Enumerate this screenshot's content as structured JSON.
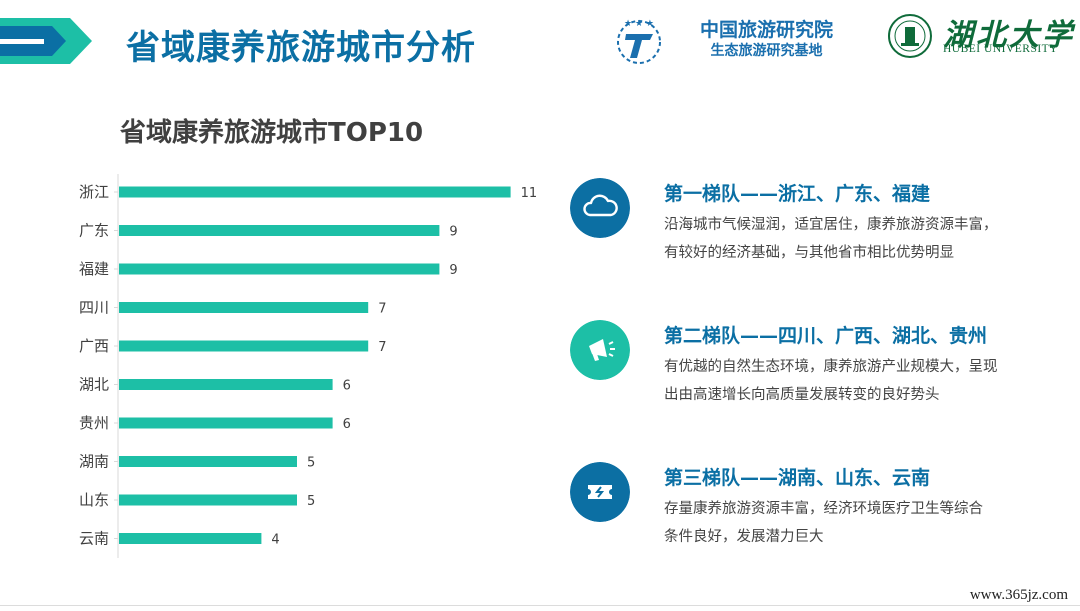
{
  "header": {
    "title": "省域康养旅游城市分析",
    "institute_line1": "中国旅游研究院",
    "institute_line2": "生态旅游研究基地",
    "university_cn": "湖北大学",
    "university_en": "HUBEI UNIVERSITY"
  },
  "chart_data": {
    "type": "bar",
    "orientation": "horizontal",
    "title": "省域康养旅游城市TOP10",
    "categories": [
      "浙江",
      "广东",
      "福建",
      "四川",
      "广西",
      "湖北",
      "贵州",
      "湖南",
      "山东",
      "云南"
    ],
    "values": [
      11,
      9,
      9,
      7,
      7,
      6,
      6,
      5,
      5,
      4
    ],
    "xlim": [
      0,
      11
    ],
    "data_labels": true,
    "grid": false,
    "legend": "none",
    "bar_color": "#1dbfa6"
  },
  "tiers": [
    {
      "heading": "第一梯队——浙江、广东、福建",
      "line1": "沿海城市气候湿润，适宜居住，康养旅游资源丰富，",
      "line2": "有较好的经济基础，与其他省市相比优势明显",
      "icon": "cloud-icon",
      "color": "#0c6fa3"
    },
    {
      "heading": "第二梯队——四川、广西、湖北、贵州",
      "line1": "有优越的自然生态环境，康养旅游产业规模大，呈现",
      "line2": "出由高速增长向高质量发展转变的良好势头",
      "icon": "megaphone-icon",
      "color": "#1dbfa6"
    },
    {
      "heading": "第三梯队——湖南、山东、云南",
      "line1": "存量康养旅游资源丰富，经济环境医疗卫生等综合",
      "line2": "条件良好，发展潜力巨大",
      "icon": "ticket-icon",
      "color": "#0c6fa3"
    }
  ],
  "watermark": "www.365jz.com",
  "colors": {
    "primary_blue": "#0b6fa4",
    "teal": "#1dbfa6",
    "text_gray": "#444444"
  }
}
